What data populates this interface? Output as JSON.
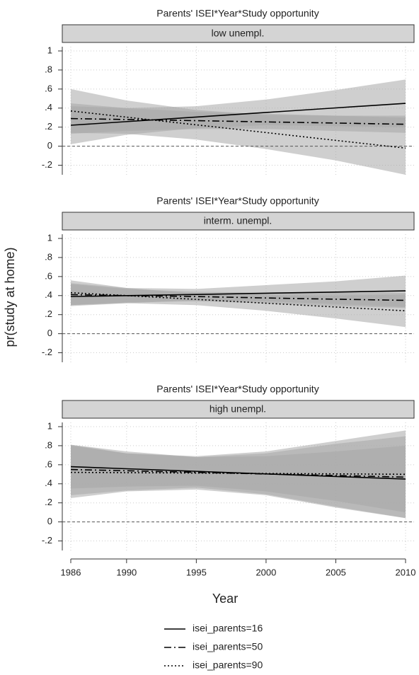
{
  "figure": {
    "ylabel": "pr(study at home)",
    "xlabel": "Year",
    "legend": {
      "position": "bottom"
    }
  },
  "chart_data": [
    {
      "type": "line",
      "title": "Parents' ISEI*Year*Study opportunity",
      "subtitle": "low unempl.",
      "x": [
        1986,
        1990,
        1995,
        2000,
        2005,
        2010
      ],
      "xlim": [
        1986,
        2010
      ],
      "xticks": [
        1986,
        1990,
        1995,
        2000,
        2005,
        2010
      ],
      "ylim": [
        -0.3,
        1
      ],
      "yticks": [
        1,
        {
          "value": 0.8,
          "label": ".8"
        },
        {
          "value": 0.6,
          "label": ".6"
        },
        {
          "value": 0.4,
          "label": ".4"
        },
        {
          "value": 0.2,
          "label": ".2"
        },
        0,
        {
          "value": -0.2,
          "label": "-.2"
        }
      ],
      "grid": true,
      "hline": 0,
      "band_color": "#a8a8a8",
      "series": [
        {
          "name": "isei_parents=16",
          "color": "#000000",
          "dash": "solid",
          "values": [
            0.22,
            0.258,
            0.306,
            0.354,
            0.402,
            0.45
          ],
          "lower": [
            0.02,
            0.12,
            0.19,
            0.22,
            0.21,
            0.2
          ],
          "upper": [
            0.42,
            0.4,
            0.42,
            0.49,
            0.59,
            0.7
          ]
        },
        {
          "name": "isei_parents=50",
          "color": "#000000",
          "dash": "dashdot",
          "values": [
            0.29,
            0.28,
            0.268,
            0.255,
            0.243,
            0.23
          ],
          "lower": [
            0.13,
            0.16,
            0.18,
            0.18,
            0.16,
            0.14
          ],
          "upper": [
            0.45,
            0.4,
            0.36,
            0.34,
            0.32,
            0.32
          ]
        },
        {
          "name": "isei_parents=90",
          "color": "#000000",
          "dash": "dotted",
          "values": [
            0.37,
            0.305,
            0.224,
            0.143,
            0.061,
            -0.02
          ],
          "lower": [
            0.14,
            0.13,
            0.07,
            -0.03,
            -0.15,
            -0.3
          ],
          "upper": [
            0.6,
            0.48,
            0.38,
            0.33,
            0.32,
            0.3
          ]
        }
      ]
    },
    {
      "type": "line",
      "title": "Parents' ISEI*Year*Study opportunity",
      "subtitle": "interm. unempl.",
      "x": [
        1986,
        1990,
        1995,
        2000,
        2005,
        2010
      ],
      "xlim": [
        1986,
        2010
      ],
      "xticks": [
        1986,
        1990,
        1995,
        2000,
        2005,
        2010
      ],
      "ylim": [
        -0.3,
        1
      ],
      "yticks": [
        1,
        {
          "value": 0.8,
          "label": ".8"
        },
        {
          "value": 0.6,
          "label": ".6"
        },
        {
          "value": 0.4,
          "label": ".4"
        },
        {
          "value": 0.2,
          "label": ".2"
        },
        0,
        {
          "value": -0.2,
          "label": "-.2"
        }
      ],
      "grid": true,
      "hline": 0,
      "band_color": "#a8a8a8",
      "series": [
        {
          "name": "isei_parents=16",
          "color": "#000000",
          "dash": "solid",
          "values": [
            0.39,
            0.4,
            0.412,
            0.425,
            0.437,
            0.45
          ],
          "lower": [
            0.29,
            0.32,
            0.35,
            0.34,
            0.31,
            0.28
          ],
          "upper": [
            0.53,
            0.48,
            0.47,
            0.51,
            0.55,
            0.61
          ]
        },
        {
          "name": "isei_parents=50",
          "color": "#000000",
          "dash": "dashdot",
          "values": [
            0.41,
            0.4,
            0.39,
            0.375,
            0.362,
            0.35
          ],
          "lower": [
            0.3,
            0.33,
            0.34,
            0.32,
            0.29,
            0.27
          ],
          "upper": [
            0.52,
            0.47,
            0.44,
            0.43,
            0.43,
            0.43
          ]
        },
        {
          "name": "isei_parents=90",
          "color": "#000000",
          "dash": "dotted",
          "values": [
            0.43,
            0.4,
            0.36,
            0.32,
            0.28,
            0.24
          ],
          "lower": [
            0.3,
            0.32,
            0.3,
            0.24,
            0.16,
            0.07
          ],
          "upper": [
            0.56,
            0.48,
            0.42,
            0.4,
            0.4,
            0.41
          ]
        }
      ]
    },
    {
      "type": "line",
      "title": "Parents' ISEI*Year*Study opportunity",
      "subtitle": "high unempl.",
      "x": [
        1986,
        1990,
        1995,
        2000,
        2005,
        2010
      ],
      "xlim": [
        1986,
        2010
      ],
      "xticks": [
        1986,
        1990,
        1995,
        2000,
        2005,
        2010
      ],
      "ylim": [
        -0.3,
        1
      ],
      "yticks": [
        1,
        {
          "value": 0.8,
          "label": ".8"
        },
        {
          "value": 0.6,
          "label": ".6"
        },
        {
          "value": 0.4,
          "label": ".4"
        },
        {
          "value": 0.2,
          "label": ".2"
        },
        0,
        {
          "value": -0.2,
          "label": "-.2"
        }
      ],
      "grid": true,
      "hline": 0,
      "band_color": "#a8a8a8",
      "series": [
        {
          "name": "isei_parents=16",
          "color": "#000000",
          "dash": "solid",
          "values": [
            0.58,
            0.558,
            0.531,
            0.504,
            0.477,
            0.45
          ],
          "lower": [
            0.35,
            0.37,
            0.38,
            0.32,
            0.22,
            0.1
          ],
          "upper": [
            0.81,
            0.74,
            0.68,
            0.69,
            0.74,
            0.8
          ]
        },
        {
          "name": "isei_parents=50",
          "color": "#000000",
          "dash": "dashdot",
          "values": [
            0.55,
            0.537,
            0.52,
            0.503,
            0.487,
            0.47
          ],
          "lower": [
            0.28,
            0.33,
            0.36,
            0.29,
            0.16,
            0.04
          ],
          "upper": [
            0.8,
            0.72,
            0.68,
            0.72,
            0.82,
            0.9
          ]
        },
        {
          "name": "isei_parents=90",
          "color": "#000000",
          "dash": "dotted",
          "values": [
            0.52,
            0.517,
            0.513,
            0.508,
            0.504,
            0.5
          ],
          "lower": [
            0.25,
            0.32,
            0.34,
            0.28,
            0.15,
            0.04
          ],
          "upper": [
            0.81,
            0.72,
            0.69,
            0.74,
            0.85,
            0.96
          ]
        }
      ]
    }
  ]
}
